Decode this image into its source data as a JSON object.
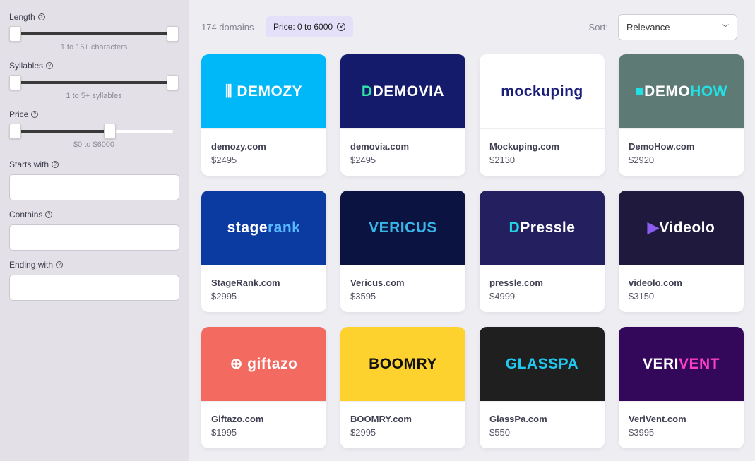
{
  "sidebar": {
    "length": {
      "label": "Length",
      "caption": "1 to 15+ characters",
      "low": 0,
      "high": 1
    },
    "syllables": {
      "label": "Syllables",
      "caption": "1 to 5+ syllables",
      "low": 0,
      "high": 1
    },
    "price": {
      "label": "Price",
      "caption": "$0 to $6000",
      "low": 0,
      "high": 0.6
    },
    "starts_with": {
      "label": "Starts with",
      "value": ""
    },
    "contains": {
      "label": "Contains",
      "value": ""
    },
    "ending_with": {
      "label": "Ending with",
      "value": ""
    },
    "help_icon": "?"
  },
  "toolbar": {
    "count": "174 domains",
    "filter_chip": "Price: 0 to 6000",
    "sort_label": "Sort:",
    "sort_value": "Relevance"
  },
  "domains": [
    {
      "name": "demozy.com",
      "price": "$2495",
      "bg": "#00b7f7",
      "logo": [
        {
          "t": "⫼ DEMOZY",
          "c": "#ffffff"
        }
      ]
    },
    {
      "name": "demovia.com",
      "price": "$2495",
      "bg": "#141b6b",
      "logo": [
        {
          "t": "D ",
          "c": "#2ee6a8"
        },
        {
          "t": "DEMOVIA",
          "c": "#ffffff"
        }
      ]
    },
    {
      "name": "Mockuping.com",
      "price": "$2130",
      "bg": "#ffffff",
      "logo": [
        {
          "t": "mockuping",
          "c": "#1b1f7a"
        }
      ]
    },
    {
      "name": "DemoHow.com",
      "price": "$2920",
      "bg": "#5e7a74",
      "logo": [
        {
          "t": "■ ",
          "c": "#22e0e6"
        },
        {
          "t": "DEMO",
          "c": "#ffffff"
        },
        {
          "t": "HOW",
          "c": "#22e0e6"
        }
      ]
    },
    {
      "name": "StageRank.com",
      "price": "$2995",
      "bg": "#0b3aa0",
      "logo": [
        {
          "t": "stage",
          "c": "#ffffff"
        },
        {
          "t": "rank",
          "c": "#56b8ff"
        }
      ]
    },
    {
      "name": "Vericus.com",
      "price": "$3595",
      "bg": "#0b1440",
      "logo": [
        {
          "t": "VERICUS",
          "c": "#39b6e8"
        }
      ]
    },
    {
      "name": "pressle.com",
      "price": "$4999",
      "bg": "#241f5f",
      "logo": [
        {
          "t": "D ",
          "c": "#22d4e0"
        },
        {
          "t": "Pressle",
          "c": "#ffffff"
        }
      ]
    },
    {
      "name": "videolo.com",
      "price": "$3150",
      "bg": "#1f1a3d",
      "logo": [
        {
          "t": "▶",
          "c": "#8a5cf0"
        },
        {
          "t": "Videolo",
          "c": "#ffffff"
        }
      ]
    },
    {
      "name": "Giftazo.com",
      "price": "$1995",
      "bg": "#f26a60",
      "logo": [
        {
          "t": "⊕ giftazo",
          "c": "#ffffff"
        }
      ]
    },
    {
      "name": "BOOMRY.com",
      "price": "$2995",
      "bg": "#fdd22f",
      "logo": [
        {
          "t": "BOOMRY",
          "c": "#111111"
        }
      ]
    },
    {
      "name": "GlassPa.com",
      "price": "$550",
      "bg": "#1f1f1f",
      "logo": [
        {
          "t": "GLASSPA",
          "c": "#1ec8f0"
        }
      ]
    },
    {
      "name": "VeriVent.com",
      "price": "$3995",
      "bg": "#33075a",
      "logo": [
        {
          "t": "VERI",
          "c": "#ffffff"
        },
        {
          "t": "VENT",
          "c": "#ff3ec8"
        }
      ]
    }
  ]
}
